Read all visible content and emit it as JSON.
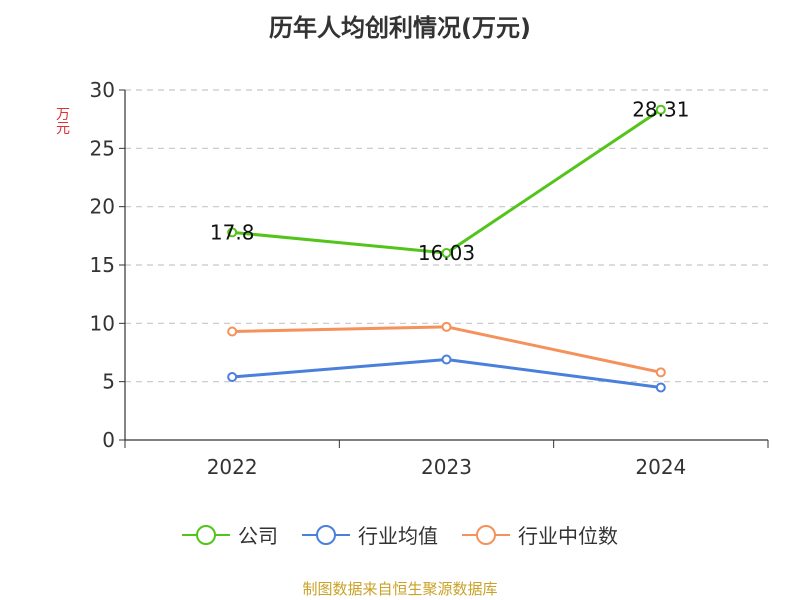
{
  "chart_data": {
    "type": "line",
    "title": "历年人均创利情况(万元)",
    "ylabel": "万元",
    "xlabel": "",
    "categories": [
      "2022",
      "2023",
      "2024"
    ],
    "ylim": [
      0,
      30
    ],
    "yticks": [
      0,
      5,
      10,
      15,
      20,
      25,
      30
    ],
    "grid": true,
    "legend_position": "bottom",
    "series": [
      {
        "name": "公司",
        "values": [
          17.8,
          16.03,
          28.31
        ],
        "color": "#52c41a",
        "labels": [
          "17.8",
          "16.03",
          "28.31"
        ]
      },
      {
        "name": "行业均值",
        "values": [
          5.4,
          6.9,
          4.5
        ],
        "color": "#4a7fdb"
      },
      {
        "name": "行业中位数",
        "values": [
          9.3,
          9.7,
          5.8
        ],
        "color": "#f5915a"
      }
    ]
  },
  "footer": "制图数据来自恒生聚源数据库"
}
